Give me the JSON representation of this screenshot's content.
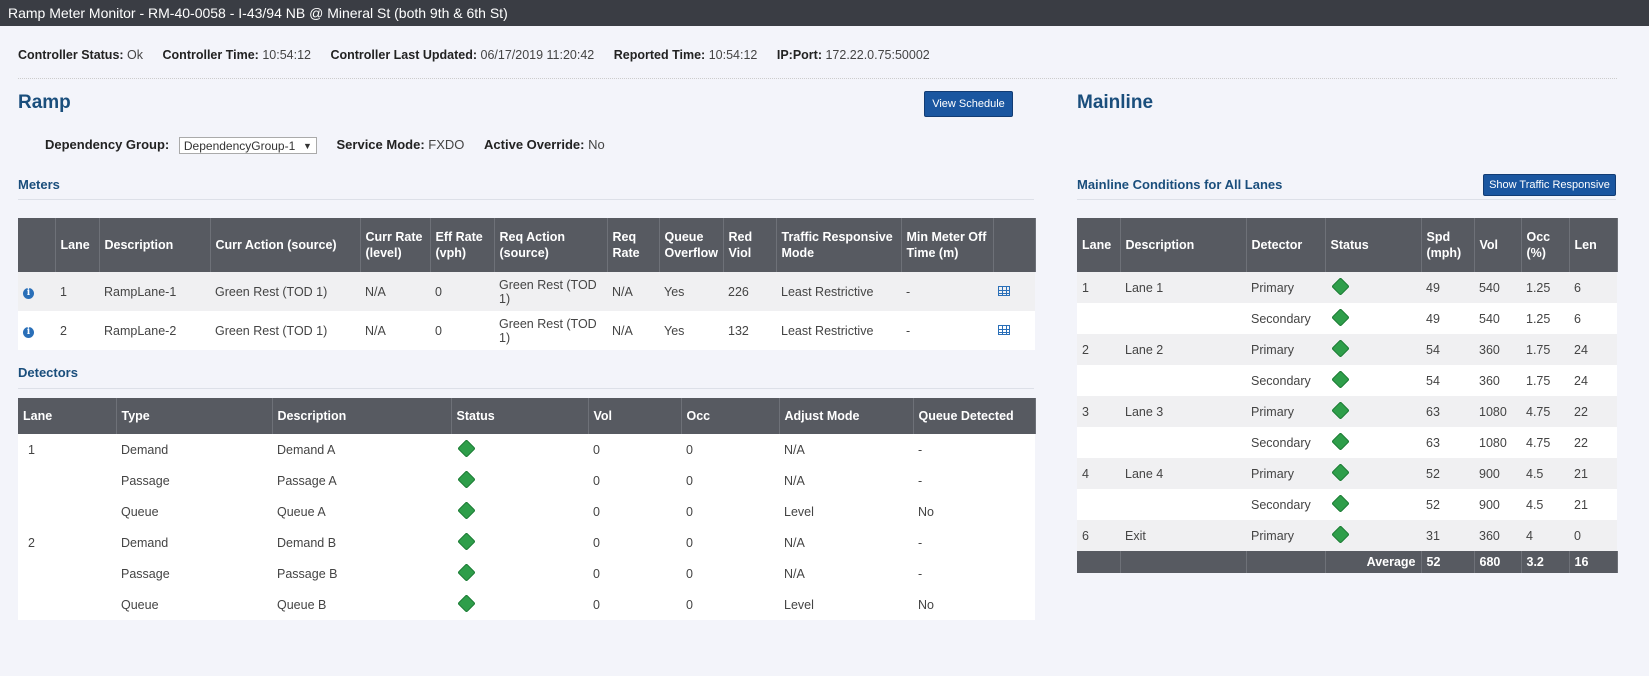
{
  "window": {
    "title": "Ramp Meter Monitor - RM-40-0058 - I-43/94 NB @ Mineral St (both 9th & 6th St)"
  },
  "status": {
    "controller_status_label": "Controller Status:",
    "controller_status": "Ok",
    "controller_time_label": "Controller Time:",
    "controller_time": "10:54:12",
    "last_updated_label": "Controller Last Updated:",
    "last_updated": "06/17/2019 11:20:42",
    "reported_time_label": "Reported Time:",
    "reported_time": "10:54:12",
    "ipport_label": "IP:Port:",
    "ipport": "172.22.0.75:50002"
  },
  "ramp": {
    "title": "Ramp",
    "view_schedule": "View Schedule",
    "dependency_group_label": "Dependency Group:",
    "dependency_group_value": "DependencyGroup-1",
    "service_mode_label": "Service Mode:",
    "service_mode": "FXDO",
    "active_override_label": "Active Override:",
    "active_override": "No"
  },
  "meters": {
    "title": "Meters",
    "headers": [
      "",
      "Lane",
      "Description",
      "Curr Action (source)",
      "Curr Rate (level)",
      "Eff Rate (vph)",
      "Req Action (source)",
      "Req Rate",
      "Queue Overflow",
      "Red Viol",
      "Traffic Responsive Mode",
      "Min Meter Off Time (m)",
      ""
    ],
    "rows": [
      {
        "lane": "1",
        "description": "RampLane-1",
        "curr_action": "Green Rest (TOD 1)",
        "curr_rate": "N/A",
        "eff_rate": "0",
        "req_action": "Green Rest (TOD 1)",
        "req_rate": "N/A",
        "queue_overflow": "Yes",
        "red_viol": "226",
        "tr_mode": "Least Restrictive",
        "min_off": "-"
      },
      {
        "lane": "2",
        "description": "RampLane-2",
        "curr_action": "Green Rest (TOD 1)",
        "curr_rate": "N/A",
        "eff_rate": "0",
        "req_action": "Green Rest (TOD 1)",
        "req_rate": "N/A",
        "queue_overflow": "Yes",
        "red_viol": "132",
        "tr_mode": "Least Restrictive",
        "min_off": "-"
      }
    ]
  },
  "detectors": {
    "title": "Detectors",
    "headers": [
      "Lane",
      "Type",
      "Description",
      "Status",
      "Vol",
      "Occ",
      "Adjust Mode",
      "Queue Detected"
    ],
    "rows": [
      {
        "lane": "1",
        "type": "Demand",
        "description": "Demand A",
        "vol": "0",
        "occ": "0",
        "adjust": "N/A",
        "queue": "-"
      },
      {
        "lane": "",
        "type": "Passage",
        "description": "Passage A",
        "vol": "0",
        "occ": "0",
        "adjust": "N/A",
        "queue": "-"
      },
      {
        "lane": "",
        "type": "Queue",
        "description": "Queue A",
        "vol": "0",
        "occ": "0",
        "adjust": "Level",
        "queue": "No"
      },
      {
        "lane": "2",
        "type": "Demand",
        "description": "Demand B",
        "vol": "0",
        "occ": "0",
        "adjust": "N/A",
        "queue": "-"
      },
      {
        "lane": "",
        "type": "Passage",
        "description": "Passage B",
        "vol": "0",
        "occ": "0",
        "adjust": "N/A",
        "queue": "-"
      },
      {
        "lane": "",
        "type": "Queue",
        "description": "Queue B",
        "vol": "0",
        "occ": "0",
        "adjust": "Level",
        "queue": "No"
      }
    ]
  },
  "mainline": {
    "title": "Mainline",
    "conditions_title": "Mainline Conditions for All Lanes",
    "show_tr_button": "Show Traffic Responsive",
    "headers": [
      "Lane",
      "Description",
      "Detector",
      "Status",
      "Spd (mph)",
      "Vol",
      "Occ (%)",
      "Len"
    ],
    "rows": [
      {
        "lane": "1",
        "description": "Lane 1",
        "detector": "Primary",
        "spd": "49",
        "vol": "540",
        "occ": "1.25",
        "len": "6"
      },
      {
        "lane": "",
        "description": "",
        "detector": "Secondary",
        "spd": "49",
        "vol": "540",
        "occ": "1.25",
        "len": "6"
      },
      {
        "lane": "2",
        "description": "Lane 2",
        "detector": "Primary",
        "spd": "54",
        "vol": "360",
        "occ": "1.75",
        "len": "24"
      },
      {
        "lane": "",
        "description": "",
        "detector": "Secondary",
        "spd": "54",
        "vol": "360",
        "occ": "1.75",
        "len": "24"
      },
      {
        "lane": "3",
        "description": "Lane 3",
        "detector": "Primary",
        "spd": "63",
        "vol": "1080",
        "occ": "4.75",
        "len": "22"
      },
      {
        "lane": "",
        "description": "",
        "detector": "Secondary",
        "spd": "63",
        "vol": "1080",
        "occ": "4.75",
        "len": "22"
      },
      {
        "lane": "4",
        "description": "Lane 4",
        "detector": "Primary",
        "spd": "52",
        "vol": "900",
        "occ": "4.5",
        "len": "21"
      },
      {
        "lane": "",
        "description": "",
        "detector": "Secondary",
        "spd": "52",
        "vol": "900",
        "occ": "4.5",
        "len": "21"
      },
      {
        "lane": "6",
        "description": "Exit",
        "detector": "Primary",
        "spd": "31",
        "vol": "360",
        "occ": "4",
        "len": "0"
      }
    ],
    "average": {
      "label": "Average",
      "spd": "52",
      "vol": "680",
      "occ": "3.2",
      "len": "16"
    }
  },
  "colors": {
    "header_bg": "#575a61",
    "accent": "#1a4e7c",
    "button": "#1a56a0",
    "status_ok": "#2e9e4a"
  },
  "icons": {
    "info": "info-circle-icon",
    "grid": "table-grid-icon",
    "status": "green-diamond-icon"
  }
}
